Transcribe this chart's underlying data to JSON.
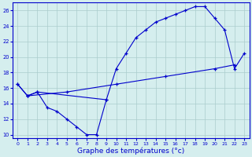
{
  "curve_dip_x": [
    0,
    1,
    2,
    3,
    4,
    5,
    6,
    7,
    8,
    9
  ],
  "curve_dip_y": [
    16.5,
    15.0,
    15.5,
    13.5,
    13.0,
    12.0,
    11.0,
    10.0,
    10.0,
    14.5
  ],
  "curve_peak_x": [
    0,
    1,
    2,
    9,
    10,
    11,
    12,
    13,
    14,
    15,
    16,
    17,
    18,
    19,
    20,
    21,
    22,
    23
  ],
  "curve_peak_y": [
    16.5,
    15.0,
    15.5,
    14.5,
    18.5,
    20.5,
    22.5,
    23.5,
    24.5,
    25.0,
    25.5,
    26.0,
    26.5,
    26.5,
    25.0,
    23.5,
    18.5,
    20.5
  ],
  "curve_diag_x": [
    1,
    5,
    10,
    15,
    20,
    22
  ],
  "curve_diag_y": [
    15.0,
    15.5,
    16.5,
    17.5,
    18.5,
    19.0
  ],
  "color": "#0000cc",
  "bg_color": "#d5eeee",
  "grid_color": "#aacccc",
  "xlabel": "Graphe des températures (°c)",
  "xlim": [
    -0.5,
    23.5
  ],
  "ylim": [
    9.5,
    27.0
  ],
  "xticks": [
    0,
    1,
    2,
    3,
    4,
    5,
    6,
    7,
    8,
    9,
    10,
    11,
    12,
    13,
    14,
    15,
    16,
    17,
    18,
    19,
    20,
    21,
    22,
    23
  ],
  "yticks": [
    10,
    12,
    14,
    16,
    18,
    20,
    22,
    24,
    26
  ],
  "xlabel_fontsize": 6.5
}
